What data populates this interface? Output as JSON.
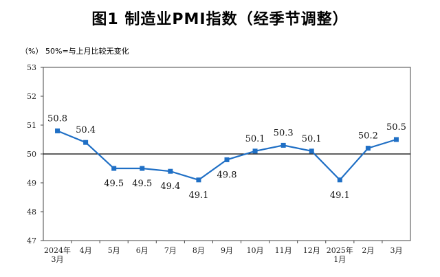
{
  "chart_data": {
    "type": "line",
    "title": "图1  制造业PMI指数（经季节调整）",
    "unit": "（%）",
    "note": "50%=与上月比较无变化",
    "categories": [
      [
        "2024年",
        "3月"
      ],
      [
        "4月"
      ],
      [
        "5月"
      ],
      [
        "6月"
      ],
      [
        "7月"
      ],
      [
        "8月"
      ],
      [
        "9月"
      ],
      [
        "10月"
      ],
      [
        "11月"
      ],
      [
        "12月"
      ],
      [
        "2025年",
        "1月"
      ],
      [
        "2月"
      ],
      [
        "3月"
      ]
    ],
    "series": [
      {
        "name": "制造业PMI",
        "values": [
          50.8,
          50.4,
          49.5,
          49.5,
          49.4,
          49.1,
          49.8,
          50.1,
          50.3,
          50.1,
          49.1,
          50.2,
          50.5
        ]
      }
    ],
    "value_labels": [
      "50.8",
      "50.4",
      "49.5",
      "49.5",
      "49.4",
      "49.1",
      "49.8",
      "50.1",
      "50.3",
      "50.1",
      "49.1",
      "50.2",
      "50.5"
    ],
    "label_side": [
      "above",
      "above",
      "below",
      "below",
      "below",
      "below",
      "below",
      "above",
      "above",
      "above",
      "below",
      "above",
      "above"
    ],
    "ylim": [
      47,
      53
    ],
    "yticks": [
      "47",
      "48",
      "49",
      "50",
      "51",
      "52",
      "53"
    ],
    "reference_line": 50,
    "line_color": "#1f6fc5"
  }
}
